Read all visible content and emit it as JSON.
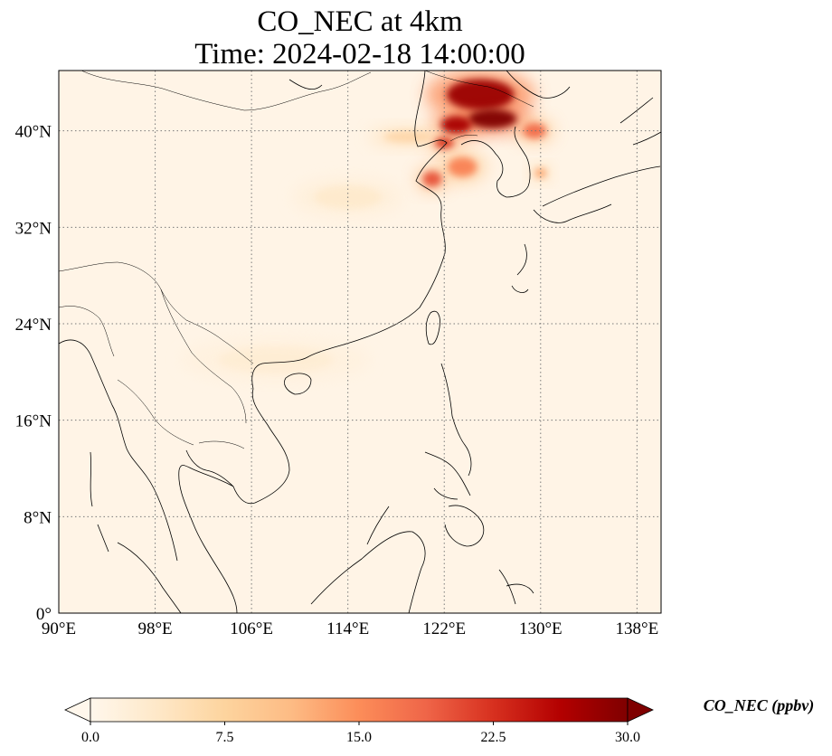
{
  "title": {
    "line1": "CO_NEC at 4km",
    "line2": "Time: 2024-02-18 14:00:00"
  },
  "map": {
    "lon_range": [
      90,
      140
    ],
    "lat_range": [
      0,
      45
    ],
    "gridlines": true,
    "gridline_style": "dotted",
    "coastlines": true,
    "borders": true,
    "x_ticks": [
      {
        "lon": 90,
        "label": "90°E"
      },
      {
        "lon": 98,
        "label": "98°E"
      },
      {
        "lon": 106,
        "label": "106°E"
      },
      {
        "lon": 114,
        "label": "114°E"
      },
      {
        "lon": 122,
        "label": "122°E"
      },
      {
        "lon": 130,
        "label": "130°E"
      },
      {
        "lon": 138,
        "label": "138°E"
      }
    ],
    "y_ticks": [
      {
        "lat": 0,
        "label": "0°"
      },
      {
        "lat": 8,
        "label": "8°N"
      },
      {
        "lat": 16,
        "label": "16°N"
      },
      {
        "lat": 24,
        "label": "24°N"
      },
      {
        "lat": 32,
        "label": "32°N"
      },
      {
        "lat": 40,
        "label": "40°N"
      }
    ],
    "plumes": [
      {
        "name": "northeast-china-plume",
        "lon": 125,
        "lat": 43,
        "rx": 3.5,
        "ry": 1.6,
        "value": 28
      },
      {
        "name": "korea-north-plume",
        "lon": 126,
        "lat": 41,
        "rx": 2.5,
        "ry": 1.0,
        "value": 30
      },
      {
        "name": "liaoning-plume",
        "lon": 123,
        "lat": 40.5,
        "rx": 1.6,
        "ry": 0.9,
        "value": 27
      },
      {
        "name": "bohai-plume",
        "lon": 122,
        "lat": 39,
        "rx": 1.0,
        "ry": 0.6,
        "value": 22
      },
      {
        "name": "shandong-plume",
        "lon": 121,
        "lat": 36,
        "rx": 1.0,
        "ry": 0.8,
        "value": 20
      },
      {
        "name": "korea-east-plume",
        "lon": 129.5,
        "lat": 40,
        "rx": 1.2,
        "ry": 0.8,
        "value": 18
      },
      {
        "name": "yellow-sea-plume",
        "lon": 123.5,
        "lat": 37,
        "rx": 1.5,
        "ry": 1.0,
        "value": 16
      },
      {
        "name": "japan-sea-plume",
        "lon": 130,
        "lat": 36.5,
        "rx": 0.6,
        "ry": 0.5,
        "value": 13
      },
      {
        "name": "north-china-streak",
        "lon": 119,
        "lat": 39.5,
        "rx": 2.5,
        "ry": 0.6,
        "value": 9
      },
      {
        "name": "central-china-haze",
        "lon": 114,
        "lat": 34.5,
        "rx": 3.5,
        "ry": 1.2,
        "value": 4
      },
      {
        "name": "south-china-haze",
        "lon": 108,
        "lat": 21,
        "rx": 6.0,
        "ry": 1.4,
        "value": 3
      }
    ]
  },
  "colorbar": {
    "min": 0.0,
    "max": 30.0,
    "colormap": "OrRd",
    "extend": "both",
    "colors": [
      "#fff7ec",
      "#fee8c8",
      "#fdd49e",
      "#fdbb84",
      "#fc8d59",
      "#ef6548",
      "#d7301f",
      "#b30000",
      "#7f0000"
    ],
    "ticks": [
      "0.0",
      "7.5",
      "15.0",
      "22.5",
      "30.0"
    ],
    "tick_values": [
      0,
      7.5,
      15,
      22.5,
      30
    ],
    "label": "CO_NEC (ppbv)"
  }
}
